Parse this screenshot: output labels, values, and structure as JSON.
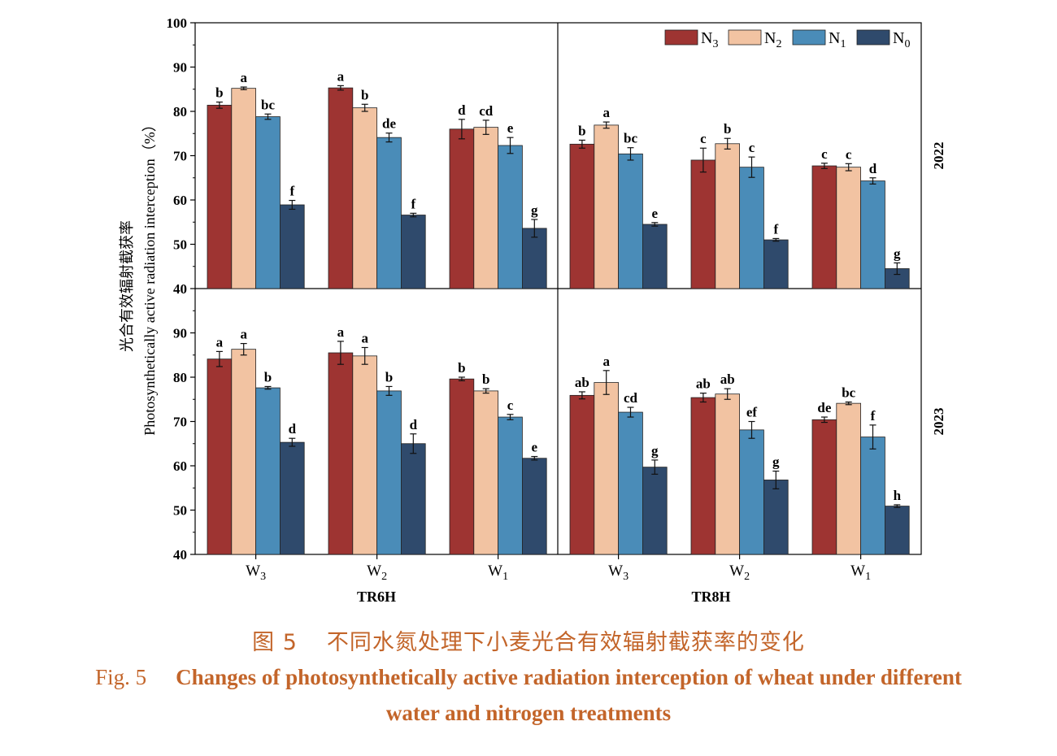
{
  "chart_data": {
    "type": "bar",
    "ylabel_cn": "光合有效辐射截获率",
    "ylabel_en": "Photosynthetically active radiation interception（%）",
    "ylim": [
      40,
      100
    ],
    "yticks": [
      40,
      50,
      60,
      70,
      80,
      90,
      100
    ],
    "categories": [
      "W3",
      "W2",
      "W1"
    ],
    "columns": [
      "TR6H",
      "TR8H"
    ],
    "rows": [
      "2022",
      "2023"
    ],
    "series": [
      {
        "name": "N3",
        "color": "#9e3432"
      },
      {
        "name": "N2",
        "color": "#f2c3a2"
      },
      {
        "name": "N1",
        "color": "#4a8cb8"
      },
      {
        "name": "N0",
        "color": "#2f4a6c"
      }
    ],
    "panels": [
      {
        "row": "2022",
        "column": "TR6H",
        "values": [
          [
            81.4,
            85.2,
            78.8,
            58.9
          ],
          [
            85.3,
            80.8,
            74.1,
            56.6
          ],
          [
            76.0,
            76.4,
            72.3,
            53.6
          ]
        ],
        "errors": [
          [
            0.7,
            0.3,
            0.6,
            1.0
          ],
          [
            0.5,
            0.8,
            1.0,
            0.4
          ],
          [
            2.2,
            1.6,
            1.8,
            2.0
          ]
        ],
        "letters": [
          [
            "b",
            "a",
            "bc",
            "f"
          ],
          [
            "a",
            "b",
            "de",
            "f"
          ],
          [
            "d",
            "cd",
            "e",
            "g"
          ]
        ]
      },
      {
        "row": "2022",
        "column": "TR8H",
        "values": [
          [
            72.6,
            76.9,
            70.4,
            54.5
          ],
          [
            69.0,
            72.7,
            67.4,
            51.0
          ],
          [
            67.7,
            67.4,
            64.3,
            44.5
          ]
        ],
        "errors": [
          [
            0.9,
            0.7,
            1.4,
            0.4
          ],
          [
            2.7,
            1.2,
            2.3,
            0.3
          ],
          [
            0.6,
            0.8,
            0.7,
            1.3
          ]
        ],
        "letters": [
          [
            "b",
            "a",
            "bc",
            "e"
          ],
          [
            "c",
            "b",
            "c",
            "f"
          ],
          [
            "c",
            "c",
            "d",
            "g"
          ]
        ]
      },
      {
        "row": "2023",
        "column": "TR6H",
        "values": [
          [
            84.1,
            86.3,
            77.6,
            65.3
          ],
          [
            85.5,
            84.8,
            76.9,
            65.0
          ],
          [
            79.6,
            76.9,
            71.0,
            61.7
          ]
        ],
        "errors": [
          [
            1.7,
            1.3,
            0.3,
            0.9
          ],
          [
            2.6,
            1.9,
            1.0,
            2.2
          ],
          [
            0.4,
            0.5,
            0.6,
            0.4
          ]
        ],
        "letters": [
          [
            "a",
            "a",
            "b",
            "d"
          ],
          [
            "a",
            "a",
            "b",
            "d"
          ],
          [
            "b",
            "b",
            "c",
            "e"
          ]
        ]
      },
      {
        "row": "2023",
        "column": "TR8H",
        "values": [
          [
            75.9,
            78.8,
            72.1,
            59.7
          ],
          [
            75.4,
            76.2,
            68.1,
            56.8
          ],
          [
            70.4,
            74.1,
            66.5,
            50.9
          ]
        ],
        "errors": [
          [
            0.8,
            2.7,
            1.1,
            1.6
          ],
          [
            1.0,
            1.2,
            1.9,
            2.0
          ],
          [
            0.6,
            0.3,
            2.7,
            0.3
          ]
        ],
        "letters": [
          [
            "ab",
            "a",
            "cd",
            "g"
          ],
          [
            "ab",
            "ab",
            "ef",
            "g"
          ],
          [
            "de",
            "bc",
            "f",
            "h"
          ]
        ]
      }
    ]
  },
  "caption": {
    "cn_label": "图 5",
    "cn_text": "不同水氮处理下小麦光合有效辐射截获率的变化",
    "en_label": "Fig. 5",
    "en_text_line1": "Changes of photosynthetically active radiation interception of wheat under different",
    "en_text_line2": "water and nitrogen treatments"
  }
}
